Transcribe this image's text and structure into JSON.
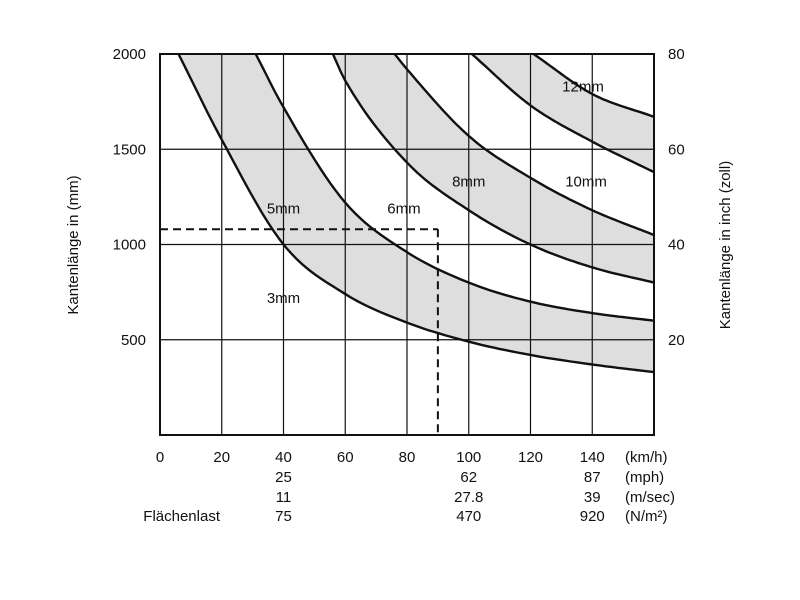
{
  "chart_data": {
    "type": "line",
    "xlabel": "",
    "ylabel": "Kantenlänge in (mm)",
    "ylabel_right": "Kantenlänge in inch (zoll)",
    "xlim": [
      0,
      160
    ],
    "ylim": [
      0,
      2000
    ],
    "y_ticks": [
      500,
      1000,
      1500,
      2000
    ],
    "y_ticks_right": [
      20,
      40,
      60,
      80
    ],
    "x_ticks": [
      0,
      20,
      40,
      60,
      80,
      100,
      120,
      140
    ],
    "x_ticks_labels": [
      "0",
      "20",
      "40",
      "60",
      "80",
      "100",
      "120",
      "140"
    ],
    "grid": true,
    "secondary_x_rows": [
      {
        "unit": "(km/h)",
        "ticks": [
          0,
          20,
          40,
          60,
          80,
          100,
          120,
          140
        ],
        "labels": [
          "0",
          "20",
          "40",
          "60",
          "80",
          "100",
          "120",
          "140"
        ]
      },
      {
        "unit": "(mph)",
        "ticks": [
          40,
          100,
          140
        ],
        "labels": [
          "25",
          "62",
          "87"
        ]
      },
      {
        "unit": "(m/sec)",
        "ticks": [
          40,
          100,
          140
        ],
        "labels": [
          "11",
          "27.8",
          "39"
        ]
      },
      {
        "unit": "(N/m²)",
        "ticks": [
          40,
          100,
          140
        ],
        "labels": [
          "75",
          "470",
          "920"
        ],
        "row_label": "Flächenlast"
      }
    ],
    "series": [
      {
        "name": "3mm",
        "x": [
          6,
          20,
          40,
          60,
          80,
          100,
          120,
          140,
          160
        ],
        "y": [
          2000,
          1550,
          1000,
          740,
          590,
          490,
          420,
          370,
          330
        ]
      },
      {
        "name": "5mm",
        "x": [
          31,
          40,
          60,
          80,
          100,
          120,
          140,
          160
        ],
        "y": [
          2000,
          1720,
          1220,
          960,
          800,
          700,
          640,
          600
        ]
      },
      {
        "name": "6mm",
        "x": [
          56,
          60,
          80,
          100,
          120,
          140,
          160
        ],
        "y": [
          2000,
          1860,
          1430,
          1180,
          1000,
          880,
          800
        ]
      },
      {
        "name": "8mm",
        "x": [
          76,
          80,
          100,
          120,
          140,
          160
        ],
        "y": [
          2000,
          1920,
          1570,
          1350,
          1180,
          1050
        ]
      },
      {
        "name": "10mm",
        "x": [
          101,
          120,
          140,
          160
        ],
        "y": [
          2000,
          1730,
          1540,
          1380
        ]
      },
      {
        "name": "12mm",
        "x": [
          121,
          140,
          160
        ],
        "y": [
          2000,
          1790,
          1670
        ]
      }
    ],
    "shaded_bands": [
      [
        "3mm",
        "5mm"
      ],
      [
        "6mm",
        "8mm"
      ],
      [
        "10mm",
        "12mm"
      ]
    ],
    "annotations": [
      {
        "text": "12mm",
        "x": 137,
        "y": 1830
      },
      {
        "text": "10mm",
        "x": 138,
        "y": 1330
      },
      {
        "text": "8mm",
        "x": 100,
        "y": 1330
      },
      {
        "text": "6mm",
        "x": 79,
        "y": 1190
      },
      {
        "text": "5mm",
        "x": 40,
        "y": 1190
      },
      {
        "text": "3mm",
        "x": 40,
        "y": 720
      }
    ],
    "reference_line": {
      "x": 90,
      "y": 1080
    },
    "colors": {
      "band": "#dedede",
      "line": "#111111",
      "grid": "#111111"
    }
  }
}
